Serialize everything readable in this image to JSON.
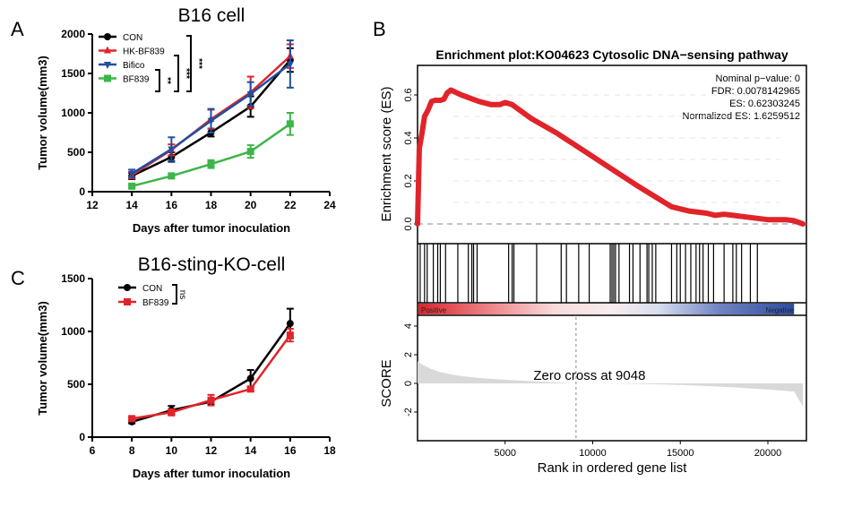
{
  "chart_data": [
    {
      "type": "line",
      "panel": "A",
      "title": "B16 cell",
      "xlabel": "Days after tumor inoculation",
      "ylabel": "Tumor volume(mm3)",
      "xlim": [
        12,
        24
      ],
      "ylim": [
        0,
        2000
      ],
      "xticks": [
        12,
        14,
        16,
        18,
        20,
        22,
        24
      ],
      "yticks": [
        0,
        500,
        1000,
        1500,
        2000
      ],
      "x": [
        14,
        16,
        18,
        20,
        22
      ],
      "series": [
        {
          "name": "CON",
          "color": "#000000",
          "marker": "circle",
          "values": [
            200,
            440,
            750,
            1080,
            1670
          ],
          "errors": [
            40,
            60,
            50,
            130,
            150
          ]
        },
        {
          "name": "HK-BF839",
          "color": "#e0242a",
          "marker": "triangle-up",
          "values": [
            210,
            530,
            920,
            1260,
            1720
          ],
          "errors": [
            40,
            70,
            120,
            200,
            150
          ]
        },
        {
          "name": "Bifico",
          "color": "#1f4fa0",
          "marker": "triangle-down",
          "values": [
            230,
            540,
            900,
            1240,
            1620
          ],
          "errors": [
            50,
            150,
            150,
            150,
            300
          ]
        },
        {
          "name": "BF839",
          "color": "#3cb54a",
          "marker": "square",
          "values": [
            70,
            200,
            350,
            510,
            860
          ],
          "errors": [
            20,
            30,
            50,
            80,
            140
          ]
        }
      ],
      "significance": [
        {
          "groups": [
            "Bifico",
            "BF839"
          ],
          "label": "**"
        },
        {
          "groups": [
            "HK-BF839",
            "BF839"
          ],
          "label": "***"
        },
        {
          "groups": [
            "CON",
            "BF839"
          ],
          "label": "***"
        }
      ],
      "legend_position": "top-left"
    },
    {
      "type": "line",
      "panel": "C",
      "title": "B16-sting-KO-cell",
      "xlabel": "Days after tumor inoculation",
      "ylabel": "Tumor volume(mm3)",
      "xlim": [
        6,
        18
      ],
      "ylim": [
        0,
        1500
      ],
      "xticks": [
        6,
        8,
        10,
        12,
        14,
        16,
        18
      ],
      "yticks": [
        0,
        500,
        1000,
        1500
      ],
      "x": [
        8,
        10,
        12,
        14,
        16
      ],
      "series": [
        {
          "name": "CON",
          "color": "#000000",
          "marker": "circle",
          "values": [
            145,
            255,
            335,
            555,
            1075
          ],
          "errors": [
            15,
            40,
            30,
            80,
            140
          ]
        },
        {
          "name": "BF839",
          "color": "#e0242a",
          "marker": "square",
          "values": [
            175,
            235,
            350,
            455,
            965
          ],
          "errors": [
            15,
            30,
            50,
            20,
            60
          ]
        }
      ],
      "significance": [
        {
          "groups": [
            "CON",
            "BF839"
          ],
          "label": "ns"
        }
      ],
      "legend_position": "top-left"
    },
    {
      "type": "line",
      "panel": "B",
      "title": "Enrichment plot:KO04623 Cytosolic DNA−sensing pathway",
      "ylabel": "Enrichment score (ES)",
      "ylim": [
        -0.05,
        0.7
      ],
      "yticks": [
        0.0,
        0.2,
        0.4,
        0.6
      ],
      "xlim": [
        0,
        22200
      ],
      "stats": [
        "Nominal p−value: 0",
        "FDR: 0.0078142965",
        "ES: 0.62303245",
        "Normalized ES: 1.6259512"
      ],
      "es_curve": {
        "color": "#e0242a",
        "x": [
          0,
          100,
          250,
          400,
          600,
          800,
          1000,
          1300,
          1500,
          1700,
          1900,
          2500,
          3500,
          4200,
          4700,
          5000,
          5400,
          6500,
          8000,
          9500,
          11000,
          12500,
          13500,
          14500,
          15500,
          16500,
          17000,
          17500,
          18000,
          19000,
          20000,
          21000,
          21500,
          22000
        ],
        "y": [
          0.0,
          0.35,
          0.42,
          0.5,
          0.53,
          0.57,
          0.575,
          0.575,
          0.58,
          0.61,
          0.623,
          0.6,
          0.57,
          0.555,
          0.555,
          0.565,
          0.555,
          0.49,
          0.42,
          0.34,
          0.26,
          0.18,
          0.13,
          0.08,
          0.06,
          0.05,
          0.04,
          0.045,
          0.04,
          0.03,
          0.02,
          0.02,
          0.015,
          0.0
        ]
      },
      "hits": [
        150,
        400,
        550,
        900,
        1150,
        1300,
        1600,
        2300,
        2900,
        3100,
        3200,
        3400,
        5200,
        5400,
        5500,
        6800,
        8200,
        8500,
        9200,
        9800,
        11000,
        11100,
        11200,
        11300,
        11500,
        12100,
        12300,
        12700,
        13100,
        13200,
        13400,
        13600,
        14500,
        14800,
        15000,
        15300,
        15600,
        15900,
        16100,
        16300,
        16600,
        16900,
        17500,
        18000,
        18200,
        18500,
        19000,
        19400
      ],
      "ranking_bar": {
        "positive_label": "Positive",
        "negative_label": "Negative"
      },
      "score_panel": {
        "ylabel": "SCORE",
        "ylim": [
          -4,
          4.6
        ],
        "yticks": [
          4,
          2,
          0,
          -2
        ],
        "xticks": [
          5000,
          10000,
          15000,
          20000
        ],
        "xlabel": "Rank in ordered gene list",
        "zero_cross": 9048,
        "zero_cross_label": "Zero cross at 9048"
      }
    }
  ],
  "panels": {
    "a_letter": "A",
    "b_letter": "B",
    "c_letter": "C"
  }
}
